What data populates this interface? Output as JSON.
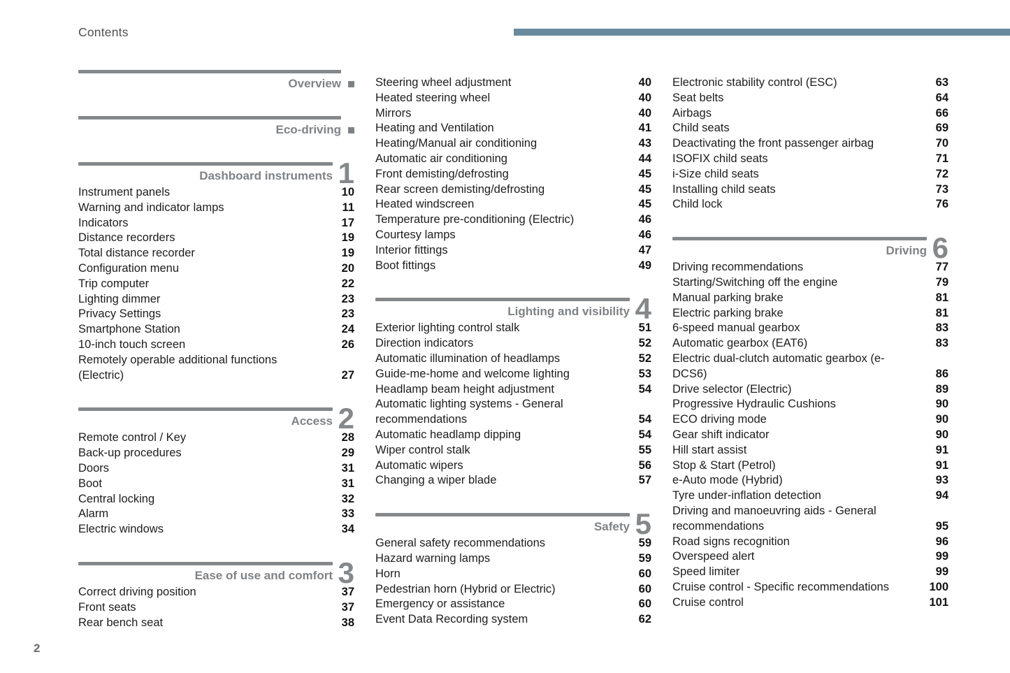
{
  "header": {
    "title": "Contents"
  },
  "footer": {
    "page_number": "2"
  },
  "colors": {
    "accent_bar": "#6a8a9e",
    "heading_gray": "#7f8285",
    "bar_gray": "#84888b"
  },
  "columns": [
    {
      "blocks": [
        {
          "type": "tab",
          "label": "Overview"
        },
        {
          "type": "tab",
          "label": "Eco-driving"
        },
        {
          "type": "section",
          "label": "Dashboard instruments",
          "number": "1",
          "items": [
            {
              "title": "Instrument panels",
              "page": "10"
            },
            {
              "title": "Warning and indicator lamps",
              "page": "11"
            },
            {
              "title": "Indicators",
              "page": "17"
            },
            {
              "title": "Distance recorders",
              "page": "19"
            },
            {
              "title": "Total distance recorder",
              "page": "19"
            },
            {
              "title": "Configuration menu",
              "page": "20"
            },
            {
              "title": "Trip computer",
              "page": "22"
            },
            {
              "title": "Lighting dimmer",
              "page": "23"
            },
            {
              "title": "Privacy Settings",
              "page": "23"
            },
            {
              "title": "Smartphone Station",
              "page": "24"
            },
            {
              "title": "10-inch touch screen",
              "page": "26"
            },
            {
              "title": "Remotely operable additional functions (Electric)",
              "page": "27"
            }
          ]
        },
        {
          "type": "section",
          "label": "Access",
          "number": "2",
          "items": [
            {
              "title": "Remote control / Key",
              "page": "28"
            },
            {
              "title": "Back-up procedures",
              "page": "29"
            },
            {
              "title": "Doors",
              "page": "31"
            },
            {
              "title": "Boot",
              "page": "31"
            },
            {
              "title": "Central locking",
              "page": "32"
            },
            {
              "title": "Alarm",
              "page": "33"
            },
            {
              "title": "Electric windows",
              "page": "34"
            }
          ]
        },
        {
          "type": "section",
          "label": "Ease of use and comfort",
          "number": "3",
          "items": [
            {
              "title": "Correct driving position",
              "page": "37"
            },
            {
              "title": "Front seats",
              "page": "37"
            },
            {
              "title": "Rear bench seat",
              "page": "38"
            }
          ]
        }
      ]
    },
    {
      "blocks": [
        {
          "type": "items",
          "items": [
            {
              "title": "Steering wheel adjustment",
              "page": "40"
            },
            {
              "title": "Heated steering wheel",
              "page": "40"
            },
            {
              "title": "Mirrors",
              "page": "40"
            },
            {
              "title": "Heating and Ventilation",
              "page": "41"
            },
            {
              "title": "Heating/Manual air conditioning",
              "page": "43"
            },
            {
              "title": "Automatic air conditioning",
              "page": "44"
            },
            {
              "title": "Front demisting/defrosting",
              "page": "45"
            },
            {
              "title": "Rear screen demisting/defrosting",
              "page": "45"
            },
            {
              "title": "Heated windscreen",
              "page": "45"
            },
            {
              "title": "Temperature pre-conditioning (Electric)",
              "page": "46"
            },
            {
              "title": "Courtesy lamps",
              "page": "46"
            },
            {
              "title": "Interior fittings",
              "page": "47"
            },
            {
              "title": "Boot fittings",
              "page": "49"
            }
          ]
        },
        {
          "type": "section",
          "label": "Lighting and visibility",
          "number": "4",
          "items": [
            {
              "title": "Exterior lighting control stalk",
              "page": "51"
            },
            {
              "title": "Direction indicators",
              "page": "52"
            },
            {
              "title": "Automatic illumination of headlamps",
              "page": "52"
            },
            {
              "title": "Guide-me-home and welcome lighting",
              "page": "53"
            },
            {
              "title": "Headlamp beam height adjustment",
              "page": "54"
            },
            {
              "title": "Automatic lighting systems - General recommendations",
              "page": "54"
            },
            {
              "title": "Automatic headlamp dipping",
              "page": "54"
            },
            {
              "title": "Wiper control stalk",
              "page": "55"
            },
            {
              "title": "Automatic wipers",
              "page": "56"
            },
            {
              "title": "Changing a wiper blade",
              "page": "57"
            }
          ]
        },
        {
          "type": "section",
          "label": "Safety",
          "number": "5",
          "items": [
            {
              "title": "General safety recommendations",
              "page": "59"
            },
            {
              "title": "Hazard warning lamps",
              "page": "59"
            },
            {
              "title": "Horn",
              "page": "60"
            },
            {
              "title": "Pedestrian horn (Hybrid or Electric)",
              "page": "60"
            },
            {
              "title": "Emergency or assistance",
              "page": "60"
            },
            {
              "title": "Event Data Recording system",
              "page": "62"
            }
          ]
        }
      ]
    },
    {
      "blocks": [
        {
          "type": "items",
          "items": [
            {
              "title": "Electronic stability control (ESC)",
              "page": "63"
            },
            {
              "title": "Seat belts",
              "page": "64"
            },
            {
              "title": "Airbags",
              "page": "66"
            },
            {
              "title": "Child seats",
              "page": "69"
            },
            {
              "title": "Deactivating the front passenger airbag",
              "page": "70"
            },
            {
              "title": "ISOFIX child seats",
              "page": "71"
            },
            {
              "title": "i-Size child seats",
              "page": "72"
            },
            {
              "title": "Installing child seats",
              "page": "73"
            },
            {
              "title": "Child lock",
              "page": "76"
            }
          ]
        },
        {
          "type": "section",
          "label": "Driving",
          "number": "6",
          "items": [
            {
              "title": "Driving recommendations",
              "page": "77"
            },
            {
              "title": "Starting/Switching off the engine",
              "page": "79"
            },
            {
              "title": "Manual parking brake",
              "page": "81"
            },
            {
              "title": "Electric parking brake",
              "page": "81"
            },
            {
              "title": "6-speed manual gearbox",
              "page": "83"
            },
            {
              "title": "Automatic gearbox (EAT6)",
              "page": "83"
            },
            {
              "title": "Electric dual-clutch automatic gearbox (e-DCS6)",
              "page": "86"
            },
            {
              "title": "Drive selector (Electric)",
              "page": "89"
            },
            {
              "title": "Progressive Hydraulic Cushions",
              "page": "90"
            },
            {
              "title": "ECO driving mode",
              "page": "90"
            },
            {
              "title": "Gear shift indicator",
              "page": "90"
            },
            {
              "title": "Hill start assist",
              "page": "91"
            },
            {
              "title": "Stop & Start (Petrol)",
              "page": "91"
            },
            {
              "title": "e-Auto mode (Hybrid)",
              "page": "93"
            },
            {
              "title": "Tyre under-inflation detection",
              "page": "94"
            },
            {
              "title": "Driving and manoeuvring aids - General recommendations",
              "page": "95"
            },
            {
              "title": "Road signs recognition",
              "page": "96"
            },
            {
              "title": "Overspeed alert",
              "page": "99"
            },
            {
              "title": "Speed limiter",
              "page": "99"
            },
            {
              "title": "Cruise control - Specific recommendations",
              "page": "100"
            },
            {
              "title": "Cruise control",
              "page": "101"
            }
          ]
        }
      ]
    }
  ]
}
